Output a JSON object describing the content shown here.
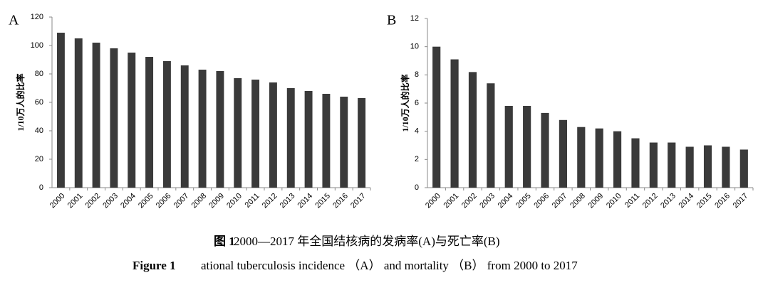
{
  "chart_data": [
    {
      "type": "bar",
      "title": "A",
      "y_label": "1/10万人的比率",
      "categories": [
        "2000",
        "2001",
        "2002",
        "2003",
        "2004",
        "2005",
        "2006",
        "2007",
        "2008",
        "2009",
        "2010",
        "2011",
        "2012",
        "2013",
        "2014",
        "2015",
        "2016",
        "2017"
      ],
      "values": [
        109,
        105,
        102,
        98,
        95,
        92,
        89,
        86,
        83,
        82,
        77,
        76,
        74,
        70,
        68,
        66,
        64,
        63
      ],
      "color": "#3a3a3a",
      "ylim": [
        0,
        120
      ],
      "yticks": [
        0,
        20,
        40,
        60,
        80,
        100,
        120
      ],
      "grid": false
    },
    {
      "type": "bar",
      "title": "B",
      "y_label": "1/10万人的比率",
      "categories": [
        "2000",
        "2001",
        "2002",
        "2003",
        "2004",
        "2005",
        "2006",
        "2007",
        "2008",
        "2009",
        "2010",
        "2011",
        "2012",
        "2013",
        "2014",
        "2015",
        "2016",
        "2017"
      ],
      "values": [
        10.0,
        9.1,
        8.2,
        7.4,
        5.8,
        5.8,
        5.3,
        4.8,
        4.3,
        4.2,
        4.0,
        3.5,
        3.2,
        3.2,
        2.9,
        3.0,
        2.9,
        2.7
      ],
      "color": "#3a3a3a",
      "ylim": [
        0,
        12
      ],
      "yticks": [
        0,
        2,
        4,
        6,
        8,
        10,
        12
      ],
      "grid": false
    }
  ],
  "caption": {
    "label_zh": "图 1",
    "text_zh": "2000—2017 年全国结核病的发病率(A)与死亡率(B)",
    "label_en": "Figure 1",
    "text_en": "ational tuberculosis incidence （A） and mortality （B） from 2000 to 2017"
  }
}
